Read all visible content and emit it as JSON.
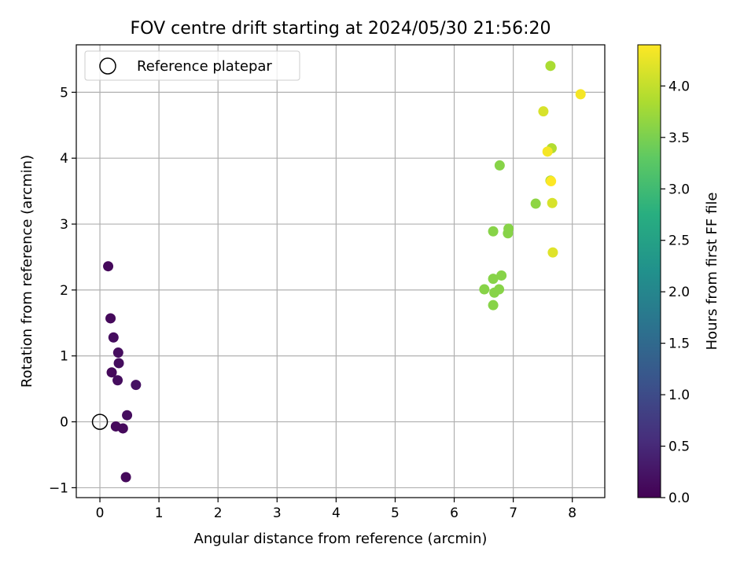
{
  "chart_data": {
    "type": "scatter",
    "title": "FOV centre drift starting at 2024/05/30 21:56:20",
    "xlabel": "Angular distance from reference (arcmin)",
    "ylabel": "Rotation from reference (arcmin)",
    "xlim": [
      -0.4,
      8.55
    ],
    "ylim": [
      -1.15,
      5.72
    ],
    "xticks": [
      0,
      1,
      2,
      3,
      4,
      5,
      6,
      7,
      8
    ],
    "yticks": [
      -1,
      0,
      1,
      2,
      3,
      4,
      5
    ],
    "grid": true,
    "legend": {
      "location": "upper-left",
      "entries": [
        "Reference platepar"
      ]
    },
    "colorbar": {
      "label": "Hours from first FF file",
      "colormap": "viridis",
      "range": [
        0.0,
        4.4
      ],
      "ticks": [
        "0.0",
        "0.5",
        "1.0",
        "1.5",
        "2.0",
        "2.5",
        "3.0",
        "3.5",
        "4.0"
      ]
    },
    "reference_point": {
      "name": "Reference platepar",
      "x": 0,
      "y": 0
    },
    "series": [
      {
        "points": [
          {
            "x": 0.14,
            "y": 2.36,
            "t": 0.1
          },
          {
            "x": 0.18,
            "y": 1.57,
            "t": 0.1
          },
          {
            "x": 0.23,
            "y": 1.28,
            "t": 0.15
          },
          {
            "x": 0.31,
            "y": 1.05,
            "t": 0.15
          },
          {
            "x": 0.32,
            "y": 0.89,
            "t": 0.15
          },
          {
            "x": 0.2,
            "y": 0.75,
            "t": 0.1
          },
          {
            "x": 0.3,
            "y": 0.63,
            "t": 0.15
          },
          {
            "x": 0.61,
            "y": 0.56,
            "t": 0.2
          },
          {
            "x": 0.46,
            "y": 0.1,
            "t": 0.15
          },
          {
            "x": 0.27,
            "y": -0.07,
            "t": 0.1
          },
          {
            "x": 0.39,
            "y": -0.1,
            "t": 0.1
          },
          {
            "x": 0.44,
            "y": -0.84,
            "t": 0.1
          },
          {
            "x": 7.63,
            "y": 5.4,
            "t": 3.85
          },
          {
            "x": 8.14,
            "y": 4.97,
            "t": 4.35
          },
          {
            "x": 7.51,
            "y": 4.71,
            "t": 4.15
          },
          {
            "x": 7.65,
            "y": 4.15,
            "t": 3.9
          },
          {
            "x": 7.58,
            "y": 4.1,
            "t": 4.35
          },
          {
            "x": 6.77,
            "y": 3.89,
            "t": 3.6
          },
          {
            "x": 7.63,
            "y": 3.66,
            "t": 3.85
          },
          {
            "x": 7.64,
            "y": 3.65,
            "t": 4.4
          },
          {
            "x": 7.38,
            "y": 3.31,
            "t": 3.65
          },
          {
            "x": 7.66,
            "y": 3.32,
            "t": 4.15
          },
          {
            "x": 6.92,
            "y": 2.93,
            "t": 3.6
          },
          {
            "x": 6.91,
            "y": 2.86,
            "t": 3.6
          },
          {
            "x": 6.66,
            "y": 2.89,
            "t": 3.6
          },
          {
            "x": 7.67,
            "y": 2.57,
            "t": 4.2
          },
          {
            "x": 6.8,
            "y": 2.22,
            "t": 3.6
          },
          {
            "x": 6.66,
            "y": 2.17,
            "t": 3.6
          },
          {
            "x": 6.51,
            "y": 2.01,
            "t": 3.6
          },
          {
            "x": 6.76,
            "y": 2.01,
            "t": 3.6
          },
          {
            "x": 6.68,
            "y": 1.96,
            "t": 3.6
          },
          {
            "x": 6.66,
            "y": 1.77,
            "t": 3.6
          }
        ]
      }
    ]
  }
}
